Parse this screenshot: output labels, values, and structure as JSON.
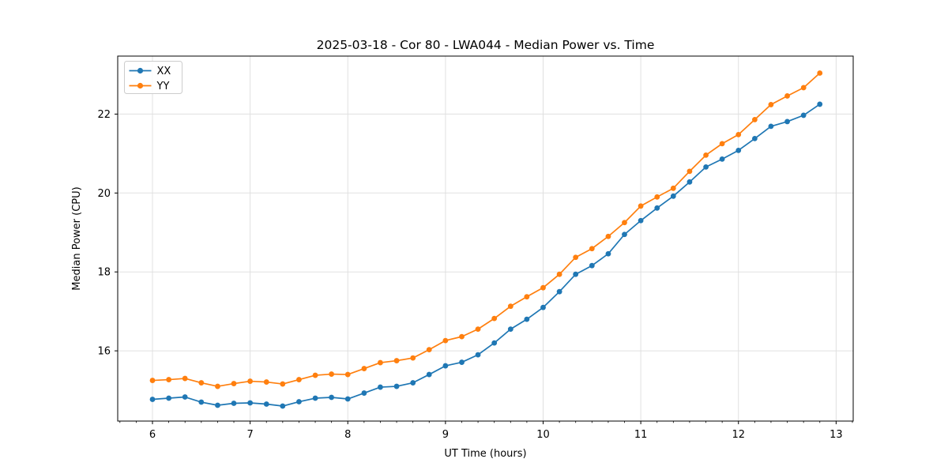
{
  "chart_data": {
    "type": "line",
    "title": "2025-03-18 - Cor 80 - LWA044 - Median Power vs. Time",
    "xlabel": "UT Time (hours)",
    "ylabel": "Median Power (CPU)",
    "xlim": [
      5.644,
      13.175
    ],
    "ylim": [
      14.22,
      23.47
    ],
    "xticks": [
      6,
      7,
      8,
      9,
      10,
      11,
      12,
      13
    ],
    "yticks": [
      16,
      18,
      20,
      22
    ],
    "x_minor_step": 0.1666667,
    "grid": true,
    "grid_color": "#e0e0e0",
    "legend_position": "upper-left",
    "background_color": "#ffffff",
    "x": [
      6.0,
      6.167,
      6.333,
      6.5,
      6.667,
      6.833,
      7.0,
      7.167,
      7.333,
      7.5,
      7.667,
      7.833,
      8.0,
      8.167,
      8.333,
      8.5,
      8.667,
      8.833,
      9.0,
      9.167,
      9.333,
      9.5,
      9.667,
      9.833,
      10.0,
      10.167,
      10.333,
      10.5,
      10.667,
      10.833,
      11.0,
      11.167,
      11.333,
      11.5,
      11.667,
      11.833,
      12.0,
      12.167,
      12.333,
      12.5,
      12.667,
      12.833
    ],
    "series": [
      {
        "name": "XX",
        "color": "#1f77b4",
        "marker": "circle",
        "values": [
          14.77,
          14.8,
          14.83,
          14.7,
          14.62,
          14.67,
          14.68,
          14.65,
          14.6,
          14.71,
          14.8,
          14.82,
          14.78,
          14.93,
          15.08,
          15.1,
          15.19,
          15.4,
          15.62,
          15.71,
          15.9,
          16.2,
          16.55,
          16.8,
          17.1,
          17.5,
          17.94,
          18.16,
          18.46,
          18.95,
          19.3,
          19.62,
          19.92,
          20.28,
          20.66,
          20.86,
          21.08,
          21.38,
          21.69,
          21.81,
          21.97,
          22.25
        ]
      },
      {
        "name": "YY",
        "color": "#ff7f0e",
        "marker": "circle",
        "values": [
          15.25,
          15.27,
          15.3,
          15.19,
          15.1,
          15.17,
          15.23,
          15.21,
          15.16,
          15.27,
          15.38,
          15.41,
          15.4,
          15.55,
          15.7,
          15.75,
          15.82,
          16.03,
          16.26,
          16.36,
          16.55,
          16.82,
          17.13,
          17.37,
          17.6,
          17.94,
          18.37,
          18.59,
          18.9,
          19.25,
          19.67,
          19.9,
          20.12,
          20.55,
          20.96,
          21.25,
          21.48,
          21.86,
          22.24,
          22.46,
          22.67,
          23.04
        ]
      }
    ]
  }
}
